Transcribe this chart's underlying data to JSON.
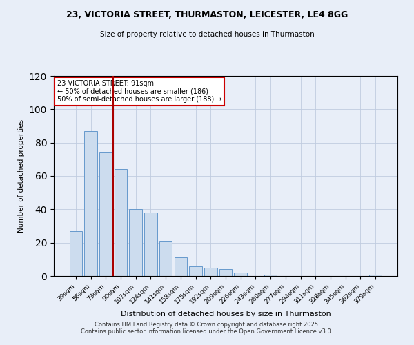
{
  "title": "23, VICTORIA STREET, THURMASTON, LEICESTER, LE4 8GG",
  "subtitle": "Size of property relative to detached houses in Thurmaston",
  "xlabel": "Distribution of detached houses by size in Thurmaston",
  "ylabel": "Number of detached properties",
  "bar_labels": [
    "39sqm",
    "56sqm",
    "73sqm",
    "90sqm",
    "107sqm",
    "124sqm",
    "141sqm",
    "158sqm",
    "175sqm",
    "192sqm",
    "209sqm",
    "226sqm",
    "243sqm",
    "260sqm",
    "277sqm",
    "294sqm",
    "311sqm",
    "328sqm",
    "345sqm",
    "362sqm",
    "379sqm"
  ],
  "bar_values": [
    27,
    87,
    74,
    64,
    40,
    38,
    21,
    11,
    6,
    5,
    4,
    2,
    0,
    1,
    0,
    0,
    0,
    0,
    0,
    0,
    1
  ],
  "bar_color": "#ccdcee",
  "bar_edge_color": "#6699cc",
  "vline_color": "#aa0000",
  "annotation_title": "23 VICTORIA STREET: 91sqm",
  "annotation_line1": "← 50% of detached houses are smaller (186)",
  "annotation_line2": "50% of semi-detached houses are larger (188) →",
  "annotation_box_color": "#ffffff",
  "annotation_box_edge": "#cc0000",
  "ylim": [
    0,
    120
  ],
  "yticks": [
    0,
    20,
    40,
    60,
    80,
    100,
    120
  ],
  "footer1": "Contains HM Land Registry data © Crown copyright and database right 2025.",
  "footer2": "Contains public sector information licensed under the Open Government Licence v3.0.",
  "background_color": "#e8eef8",
  "plot_bg_color": "#e8eef8",
  "grid_color": "#c0cce0"
}
